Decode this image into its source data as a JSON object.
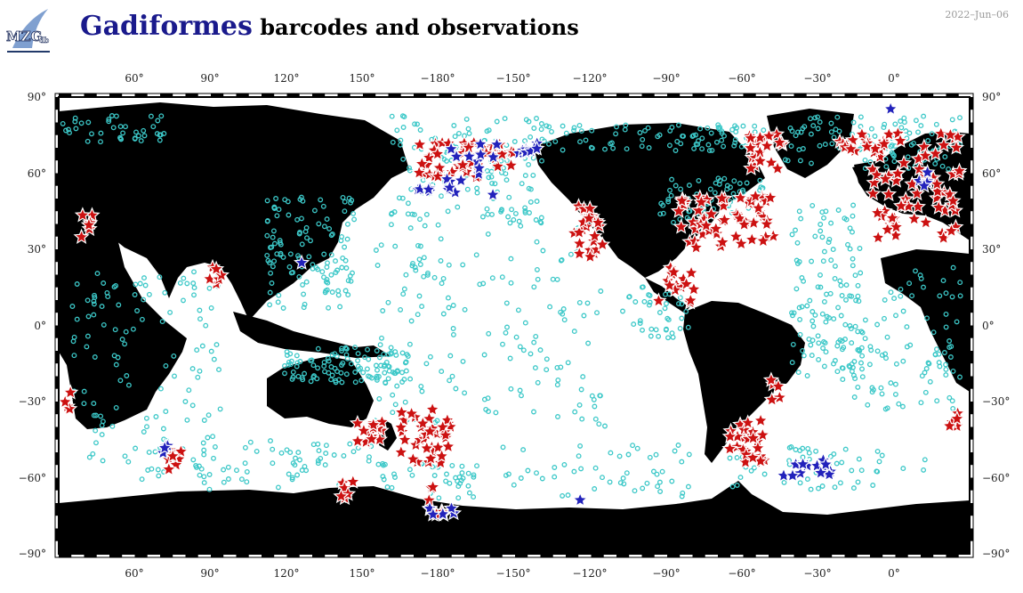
{
  "logo": {
    "text": "MZG",
    "sub": "db"
  },
  "title": {
    "genus": "Gadiformes",
    "rest": "barcodes and observations"
  },
  "date": "2022–Jun–06",
  "axes": {
    "top_labels": [
      "60°",
      "90°",
      "120°",
      "150°",
      "−180°",
      "−150°",
      "−120°",
      "−90°",
      "−60°",
      "−30°",
      "0°"
    ],
    "bottom_labels": [
      "60°",
      "90°",
      "120°",
      "150°",
      "−180°",
      "−150°",
      "−120°",
      "−90°",
      "−60°",
      "−30°",
      "0°"
    ],
    "left_labels": [
      "90°",
      "60°",
      "30°",
      "0°",
      "−30°",
      "−60°",
      "−90°"
    ],
    "right_labels": [
      "90°",
      "60°",
      "30°",
      "0°",
      "−30°",
      "−60°",
      "−90°"
    ]
  },
  "colors": {
    "land": "#000000",
    "ocean": "#ffffff",
    "observation": "#3cc8c8",
    "barcode_red": "#cc1111",
    "barcode_blue": "#2222bb",
    "star_outline": "#ffffff"
  },
  "markers": {
    "observation_icon": "cyan-circle",
    "barcode_icon": "red-star",
    "barcode_alt_icon": "blue-star",
    "red_stars": [
      [
        48,
        25
      ],
      [
        67,
        42
      ],
      [
        84,
        48
      ],
      [
        90,
        307
      ],
      [
        72,
        200
      ],
      [
        102,
        327
      ],
      [
        131,
        390
      ],
      [
        182,
        328
      ],
      [
        226,
        360
      ],
      [
        228,
        378
      ],
      [
        353,
        263
      ],
      [
        360,
        320
      ],
      [
        363,
        318
      ],
      [
        382,
        283
      ],
      [
        384,
        281
      ],
      [
        388,
        279
      ],
      [
        392,
        293
      ],
      [
        462,
        308
      ],
      [
        466,
        310
      ],
      [
        476,
        318
      ],
      [
        481,
        263
      ],
      [
        479,
        330
      ],
      [
        498,
        301
      ],
      [
        532,
        239
      ],
      [
        558,
        238
      ],
      [
        639,
        232
      ],
      [
        646,
        235
      ],
      [
        668,
        196
      ],
      [
        678,
        193
      ],
      [
        685,
        201
      ],
      [
        688,
        200
      ],
      [
        698,
        195
      ],
      [
        712,
        198
      ],
      [
        714,
        198
      ],
      [
        736,
        192
      ],
      [
        750,
        168
      ],
      [
        760,
        161
      ],
      [
        783,
        169
      ],
      [
        788,
        152
      ],
      [
        795,
        205
      ],
      [
        801,
        205
      ],
      [
        806,
        191
      ],
      [
        818,
        201
      ],
      [
        838,
        198
      ],
      [
        853,
        204
      ],
      [
        873,
        198
      ],
      [
        884,
        207
      ],
      [
        906,
        190
      ],
      [
        926,
        187
      ],
      [
        936,
        175
      ],
      [
        940,
        179
      ],
      [
        958,
        193
      ],
      [
        968,
        186
      ],
      [
        972,
        175
      ],
      [
        983,
        160
      ],
      [
        987,
        140
      ],
      [
        1001,
        150
      ],
      [
        1012,
        149
      ],
      [
        1016,
        155
      ],
      [
        1023,
        163
      ],
      [
        1030,
        164
      ],
      [
        1052,
        158
      ],
      [
        1064,
        182
      ],
      [
        1076,
        192
      ],
      [
        1079,
        197
      ],
      [
        1082,
        219
      ],
      [
        1086,
        239
      ],
      [
        1094,
        229
      ],
      [
        1108,
        243
      ],
      [
        1117,
        253
      ],
      [
        1138,
        253
      ],
      [
        1150,
        260
      ],
      [
        1153,
        257
      ],
      [
        1168,
        266
      ],
      [
        1174,
        291
      ],
      [
        1188,
        277
      ],
      [
        1198,
        296
      ],
      [
        1198,
        296
      ],
      [
        1207,
        300
      ],
      [
        1221,
        304
      ],
      [
        1238,
        314
      ],
      [
        1249,
        309
      ],
      [
        1259,
        328
      ],
      [
        1272,
        335
      ],
      [
        1296,
        327
      ],
      [
        1299,
        346
      ],
      [
        1322,
        354
      ],
      [
        1339,
        363
      ],
      [
        1342,
        370
      ],
      [
        1350,
        372
      ],
      [
        1356,
        371
      ],
      [
        1358,
        388
      ],
      [
        1378,
        390
      ],
      [
        1381,
        401
      ],
      [
        1390,
        402
      ],
      [
        1391,
        394
      ],
      [
        1396,
        410
      ],
      [
        1417,
        422
      ],
      [
        1421,
        440
      ],
      [
        1432,
        453
      ],
      [
        1440,
        451
      ],
      [
        1440,
        467
      ],
      [
        1452,
        467
      ],
      [
        1455,
        453
      ],
      [
        1462,
        444
      ],
      [
        1467,
        451
      ],
      [
        1472,
        449
      ],
      [
        1485,
        479
      ],
      [
        1495,
        488
      ],
      [
        1495,
        493
      ],
      [
        1507,
        493
      ],
      [
        1517,
        503
      ],
      [
        1533,
        516
      ],
      [
        1538,
        516
      ],
      [
        1549,
        519
      ],
      [
        1559,
        525
      ],
      [
        1575,
        528
      ],
      [
        1578,
        544
      ],
      [
        1608,
        548
      ],
      [
        1628,
        546
      ],
      [
        1633,
        560
      ],
      [
        1636,
        552
      ],
      [
        1655,
        574
      ],
      [
        1690,
        576
      ],
      [
        1704,
        596
      ],
      [
        1707,
        597
      ],
      [
        1710,
        609
      ],
      [
        1733,
        606
      ],
      [
        1757,
        609
      ],
      [
        1780,
        636
      ],
      [
        1788,
        630
      ],
      [
        1807,
        641
      ],
      [
        1814,
        664
      ],
      [
        1816,
        677
      ],
      [
        1824,
        687
      ],
      [
        1855,
        702
      ],
      [
        1862,
        706
      ],
      [
        1884,
        720
      ],
      [
        1893,
        743
      ],
      [
        1910,
        759
      ],
      [
        1917,
        773
      ],
      [
        1932,
        790
      ],
      [
        1937,
        787
      ],
      [
        1940,
        797
      ],
      [
        1952,
        797
      ],
      [
        1956,
        806
      ],
      [
        1962,
        824
      ],
      [
        1981,
        839
      ],
      [
        1994,
        839
      ],
      [
        2001,
        862
      ],
      [
        2011,
        884
      ],
      [
        2017,
        882
      ],
      [
        2020,
        888
      ],
      [
        2020,
        901
      ],
      [
        2022,
        916
      ],
      [
        2030,
        925
      ],
      [
        2032,
        936
      ],
      [
        2045,
        940
      ],
      [
        2050,
        943
      ],
      [
        2056,
        956
      ],
      [
        2061,
        966
      ],
      [
        2083,
        970
      ],
      [
        2099,
        974
      ],
      [
        2101,
        984
      ],
      [
        2106,
        989
      ],
      [
        2124,
        1006
      ],
      [
        2134,
        1012
      ],
      [
        2141,
        1037
      ],
      [
        2145,
        1045
      ],
      [
        2148,
        1053
      ],
      [
        2160,
        1064
      ],
      [
        2163,
        1074
      ],
      [
        2182,
        1076
      ],
      [
        2195,
        1089
      ],
      [
        2207,
        1097
      ],
      [
        2214,
        1104
      ],
      [
        2219,
        1108
      ],
      [
        2226,
        1112
      ],
      [
        2243,
        1124
      ],
      [
        2247,
        1131
      ],
      [
        2271,
        1144
      ],
      [
        2287,
        1147
      ],
      [
        2298,
        1150
      ],
      [
        2303,
        1152
      ],
      [
        2317,
        1163
      ],
      [
        2322,
        1163
      ],
      [
        2332,
        1166
      ],
      [
        2334,
        1176
      ],
      [
        2341,
        1187
      ]
    ]
  }
}
